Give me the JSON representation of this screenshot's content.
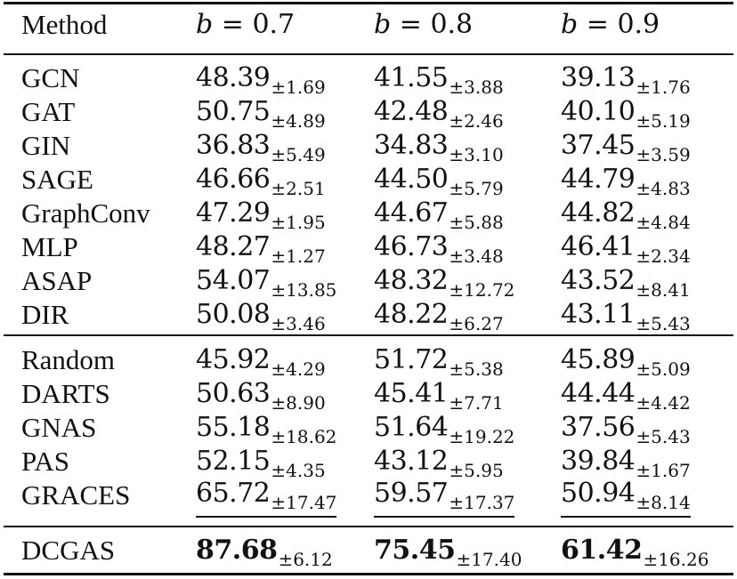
{
  "header": {
    "method": "Method",
    "cols": [
      "b",
      "b",
      "b"
    ],
    "eq": [
      "= 0.7",
      "= 0.8",
      "= 0.9"
    ]
  },
  "group1": [
    {
      "method": "GCN",
      "v": [
        "48.39",
        "41.55",
        "39.13"
      ],
      "s": [
        "±1.69",
        "±3.88",
        "±1.76"
      ]
    },
    {
      "method": "GAT",
      "v": [
        "50.75",
        "42.48",
        "40.10"
      ],
      "s": [
        "±4.89",
        "±2.46",
        "±5.19"
      ]
    },
    {
      "method": "GIN",
      "v": [
        "36.83",
        "34.83",
        "37.45"
      ],
      "s": [
        "±5.49",
        "±3.10",
        "±3.59"
      ]
    },
    {
      "method": "SAGE",
      "v": [
        "46.66",
        "44.50",
        "44.79"
      ],
      "s": [
        "±2.51",
        "±5.79",
        "±4.83"
      ]
    },
    {
      "method": "GraphConv",
      "v": [
        "47.29",
        "44.67",
        "44.82"
      ],
      "s": [
        "±1.95",
        "±5.88",
        "±4.84"
      ]
    },
    {
      "method": "MLP",
      "v": [
        "48.27",
        "46.73",
        "46.41"
      ],
      "s": [
        "±1.27",
        "±3.48",
        "±2.34"
      ]
    },
    {
      "method": "ASAP",
      "v": [
        "54.07",
        "48.32",
        "43.52"
      ],
      "s": [
        "±13.85",
        "±12.72",
        "±8.41"
      ]
    },
    {
      "method": "DIR",
      "v": [
        "50.08",
        "48.22",
        "43.11"
      ],
      "s": [
        "±3.46",
        "±6.27",
        "±5.43"
      ]
    }
  ],
  "group2": [
    {
      "method": "Random",
      "v": [
        "45.92",
        "51.72",
        "45.89"
      ],
      "s": [
        "±4.29",
        "±5.38",
        "±5.09"
      ]
    },
    {
      "method": "DARTS",
      "v": [
        "50.63",
        "45.41",
        "44.44"
      ],
      "s": [
        "±8.90",
        "±7.71",
        "±4.42"
      ]
    },
    {
      "method": "GNAS",
      "v": [
        "55.18",
        "51.64",
        "37.56"
      ],
      "s": [
        "±18.62",
        "±19.22",
        "±5.43"
      ]
    },
    {
      "method": "PAS",
      "v": [
        "52.15",
        "43.12",
        "39.84"
      ],
      "s": [
        "±4.35",
        "±5.95",
        "±1.67"
      ]
    },
    {
      "method": "GRACES",
      "v": [
        "65.72",
        "59.57",
        "50.94"
      ],
      "s": [
        "±17.47",
        "±17.37",
        "±8.14"
      ]
    }
  ],
  "group3": [
    {
      "method": "DCGAS",
      "v": [
        "87.68",
        "75.45",
        "61.42"
      ],
      "s": [
        "±6.12",
        "±17.40",
        "±16.26"
      ]
    }
  ]
}
